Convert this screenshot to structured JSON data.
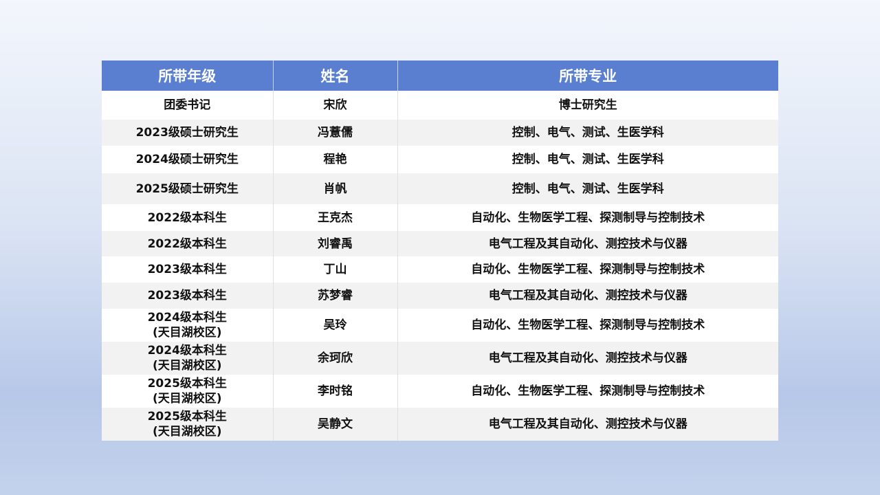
{
  "table": {
    "header": [
      "所带年级",
      "姓名",
      "所带专业"
    ],
    "rows": [
      [
        [
          "团委书记"
        ],
        [
          "宋欣"
        ],
        [
          "博士研究生"
        ]
      ],
      [
        [
          "2023级硕士研究生"
        ],
        [
          "冯薏儒"
        ],
        [
          "控制、电气、测试、生医学科"
        ]
      ],
      [
        [
          "2024级硕士研究生"
        ],
        [
          "程艳"
        ],
        [
          "控制、电气、测试、生医学科"
        ]
      ],
      [
        [
          "2025级硕士研究生"
        ],
        [
          "肖帆"
        ],
        [
          "控制、电气、测试、生医学科"
        ]
      ],
      [
        [
          "2022级本科生"
        ],
        [
          "王克杰"
        ],
        [
          "自动化、生物医学工程、探测制导与控制技术"
        ]
      ],
      [
        [
          "2022级本科生"
        ],
        [
          "刘睿禹"
        ],
        [
          "电气工程及其自动化、测控技术与仪器"
        ]
      ],
      [
        [
          "2023级本科生"
        ],
        [
          "丁山"
        ],
        [
          "自动化、生物医学工程、探测制导与控制技术"
        ]
      ],
      [
        [
          "2023级本科生"
        ],
        [
          "苏梦睿"
        ],
        [
          "电气工程及其自动化、测控技术与仪器"
        ]
      ],
      [
        [
          "2024级本科生",
          "(天目湖校区)"
        ],
        [
          "吴玲"
        ],
        [
          "自动化、生物医学工程、探测制导与控制技术"
        ]
      ],
      [
        [
          "2024级本科生",
          "(天目湖校区)"
        ],
        [
          "余珂欣"
        ],
        [
          "电气工程及其自动化、测控技术与仪器"
        ]
      ],
      [
        [
          "2025级本科生",
          "(天目湖校区)"
        ],
        [
          "李时铭"
        ],
        [
          "自动化、生物医学工程、探测制导与控制技术"
        ]
      ],
      [
        [
          "2025级本科生",
          "(天目湖校区)"
        ],
        [
          "吴静文"
        ],
        [
          "电气工程及其自动化、测控技术与仪器"
        ]
      ]
    ]
  }
}
